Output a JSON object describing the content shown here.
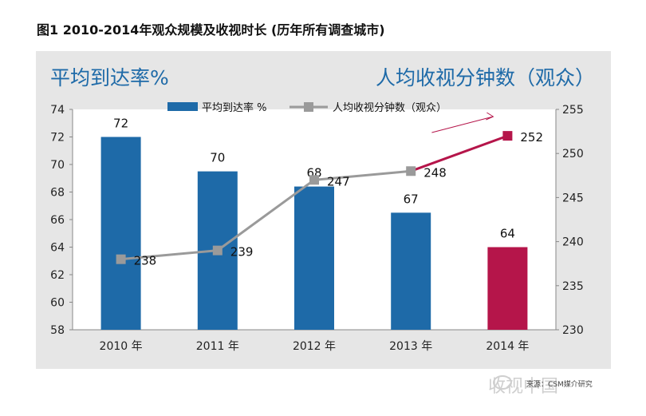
{
  "figure_title": "图1  2010-2014年观众规模及收视时长 (历年所有调查城市)",
  "header_left": "平均到达率%",
  "header_right": "人均收视分钟数（观众）",
  "watermark": "收视中国",
  "source": "来源：CSM媒介研究",
  "colors": {
    "bar": "#1e6aa8",
    "bar_highlight": "#b5154a",
    "line": "#9a9a9a",
    "line_highlight": "#b5154a",
    "panel": "#e6e6e6"
  },
  "chart_data": {
    "type": "bar+line",
    "categories": [
      "2010 年",
      "2011 年",
      "2012 年",
      "2013 年",
      "2014 年"
    ],
    "series": [
      {
        "name": "平均到达率  %",
        "type": "bar",
        "axis": "left",
        "values": [
          72,
          69.5,
          68.4,
          66.5,
          64
        ],
        "labels": [
          "72",
          "70",
          "68",
          "67",
          "64"
        ]
      },
      {
        "name": "人均收视分钟数（观众）",
        "type": "line",
        "axis": "right",
        "values": [
          238,
          239,
          247,
          248,
          252
        ],
        "labels": [
          "238",
          "239",
          "247",
          "248",
          "252"
        ]
      }
    ],
    "y_left": {
      "min": 58,
      "max": 74,
      "ticks": [
        "58",
        "60",
        "62",
        "64",
        "66",
        "68",
        "70",
        "72",
        "74"
      ]
    },
    "y_right": {
      "min": 230,
      "max": 255,
      "ticks": [
        "230",
        "235",
        "240",
        "245",
        "250",
        "255"
      ]
    },
    "highlight_index": 4,
    "legend_position": "top",
    "annotation": "upward arrow near 2014"
  }
}
